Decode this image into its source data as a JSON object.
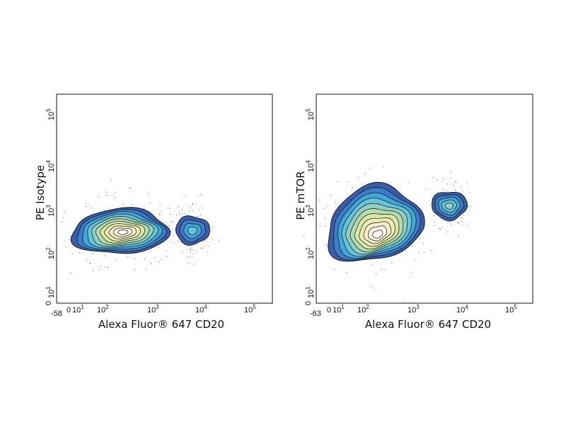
{
  "chart_data": [
    {
      "type": "contour",
      "xlabel": "Alexa Fluor® 647 CD20",
      "ylabel": "PE Isotype",
      "x_scale": "biexponential",
      "y_scale": "biexponential",
      "x_min_label": "-58",
      "x_tick_labels": [
        "0",
        "10^1",
        "10^2",
        "10^3",
        "10^4",
        "10^5"
      ],
      "y_tick_labels": [
        "0",
        "10^1",
        "10^2",
        "10^3",
        "10^4",
        "10^5"
      ],
      "populations": [
        {
          "name": "",
          "x": 200,
          "y": 280,
          "max_level": 10
        },
        {
          "name": "",
          "x": 5500,
          "y": 300,
          "max_level": 3
        }
      ]
    },
    {
      "type": "contour",
      "xlabel": "Alexa Fluor® 647 CD20",
      "ylabel": "PE mTOR",
      "x_scale": "biexponential",
      "y_scale": "biexponential",
      "x_min_label": "-63",
      "x_tick_labels": [
        "0",
        "10^1",
        "10^2",
        "10^3",
        "10^4",
        "10^5"
      ],
      "y_tick_labels": [
        "0",
        "10^1",
        "10^2",
        "10^3",
        "10^4",
        "10^5"
      ],
      "populations": [
        {
          "name": "",
          "x": 190,
          "y": 290,
          "max_level": 10
        },
        {
          "name": "",
          "x": 4500,
          "y": 1000,
          "max_level": 4
        }
      ]
    }
  ],
  "colors": {
    "contour_levels": [
      "#3B5CA8",
      "#3D7CC6",
      "#41A8DA",
      "#67C3DA",
      "#93D0C4",
      "#B7DDAE",
      "#D7E9A8",
      "#ECEBB2",
      "#F6EDCA",
      "#FBF3E4",
      "#FFFBF4"
    ],
    "outline": "#111111",
    "dots": "#3a3a70"
  }
}
